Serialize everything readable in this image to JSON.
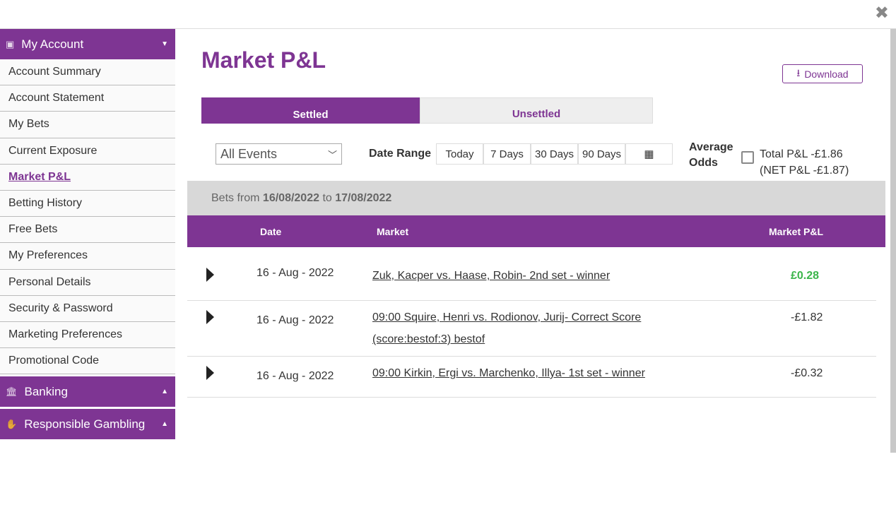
{
  "close_label": "✖",
  "sidebar": {
    "sections": [
      {
        "label": "My Account"
      },
      {
        "label": "Banking"
      },
      {
        "label": "Responsible Gambling"
      }
    ],
    "items": [
      {
        "label": "Account Summary"
      },
      {
        "label": "Account Statement"
      },
      {
        "label": "My Bets"
      },
      {
        "label": "Current Exposure"
      },
      {
        "label": "Market P&L"
      },
      {
        "label": "Betting History"
      },
      {
        "label": "Free Bets"
      },
      {
        "label": "My Preferences"
      },
      {
        "label": "Personal Details"
      },
      {
        "label": "Security & Password"
      },
      {
        "label": "Marketing Preferences"
      },
      {
        "label": "Promotional Code"
      }
    ]
  },
  "main": {
    "title": "Market P&L",
    "download_label": "Download",
    "tabs": [
      {
        "label": "Settled"
      },
      {
        "label": "Unsettled"
      }
    ],
    "event_filter": "All Events",
    "date_range_label": "Date Range",
    "date_buttons": [
      {
        "label": "Today"
      },
      {
        "label": "7 Days"
      },
      {
        "label": "30 Days"
      },
      {
        "label": "90 Days"
      }
    ],
    "average_odds_line1": "Average",
    "average_odds_line2": "Odds",
    "total_pl": "Total P&L -£1.86",
    "net_pl": "(NET P&L -£1.87)",
    "range": {
      "prefix": "Bets from",
      "from": "16/08/2022",
      "mid": "to",
      "to": "17/08/2022"
    },
    "columns": {
      "date": "Date",
      "market": "Market",
      "pl": "Market P&L"
    },
    "rows": [
      {
        "date": "16 - Aug - 2022",
        "market": "Zuk, Kacper vs. Haase, Robin- 2nd set - winner",
        "market2": "",
        "pl": "£0.28",
        "color": "#3bb54a"
      },
      {
        "date": "16 - Aug - 2022",
        "market": "09:00 Squire, Henri vs. Rodionov, Jurij- Correct Score",
        "market2": "(score:bestof:3) bestof",
        "pl": "-£1.82",
        "color": "#333333"
      },
      {
        "date": "16 - Aug - 2022",
        "market": "09:00 Kirkin, Ergi vs. Marchenko, Illya- 1st set - winner",
        "market2": "",
        "pl": "-£0.32",
        "color": "#333333"
      }
    ]
  }
}
